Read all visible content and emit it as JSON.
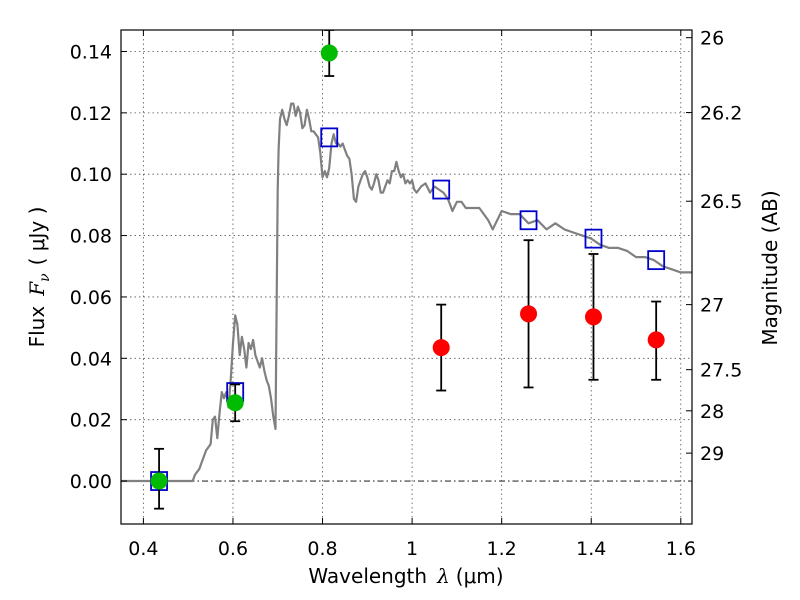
{
  "chart_data": {
    "type": "scatter",
    "title": "",
    "xlabel": {
      "text": "Wavelength",
      "symbol": "λ",
      "unit": "(μm)"
    },
    "ylabel": {
      "text": "Flux",
      "symbol": "F",
      "subscript": "ν",
      "unit": "( μJy )"
    },
    "y2label": "Magnitude (AB)",
    "xlim": [
      0.35,
      1.625
    ],
    "ylim": [
      -0.014,
      0.147
    ],
    "grid": true,
    "xticks": [
      0.4,
      0.6,
      0.8,
      1.0,
      1.2,
      1.4,
      1.6
    ],
    "xtick_labels": [
      "0.4",
      "0.6",
      "0.8",
      "1",
      "1.2",
      "1.4",
      "1.6"
    ],
    "yticks": [
      0.0,
      0.02,
      0.04,
      0.06,
      0.08,
      0.1,
      0.12,
      0.14
    ],
    "ytick_labels": [
      "0.00",
      "0.02",
      "0.04",
      "0.06",
      "0.08",
      "0.10",
      "0.12",
      "0.14"
    ],
    "y2ticks": [
      {
        "label": "26",
        "flux": 0.1445
      },
      {
        "label": "26.2",
        "flux": 0.1201
      },
      {
        "label": "26.5",
        "flux": 0.0912
      },
      {
        "label": "27",
        "flux": 0.0575
      },
      {
        "label": "27.5",
        "flux": 0.0363
      },
      {
        "label": "28",
        "flux": 0.0229
      },
      {
        "label": "29",
        "flux": 0.0091
      }
    ],
    "series": [
      {
        "color": "#808080",
        "kind": "line",
        "x": [
          0.35,
          0.51,
          0.515,
          0.525,
          0.53,
          0.54,
          0.55,
          0.555,
          0.56,
          0.565,
          0.57,
          0.575,
          0.58,
          0.585,
          0.59,
          0.595,
          0.6,
          0.605,
          0.61,
          0.615,
          0.62,
          0.625,
          0.63,
          0.635,
          0.64,
          0.645,
          0.65,
          0.655,
          0.66,
          0.665,
          0.67,
          0.675,
          0.68,
          0.685,
          0.69,
          0.695,
          0.7,
          0.702,
          0.705,
          0.71,
          0.715,
          0.72,
          0.725,
          0.73,
          0.735,
          0.74,
          0.745,
          0.75,
          0.755,
          0.76,
          0.765,
          0.77,
          0.775,
          0.78,
          0.785,
          0.79,
          0.795,
          0.8,
          0.805,
          0.81,
          0.815,
          0.82,
          0.825,
          0.83,
          0.835,
          0.84,
          0.845,
          0.85,
          0.855,
          0.86,
          0.865,
          0.87,
          0.875,
          0.88,
          0.885,
          0.89,
          0.895,
          0.9,
          0.905,
          0.91,
          0.915,
          0.92,
          0.925,
          0.93,
          0.935,
          0.94,
          0.945,
          0.95,
          0.955,
          0.96,
          0.965,
          0.97,
          0.975,
          0.98,
          0.985,
          0.99,
          0.995,
          1.0,
          1.005,
          1.01,
          1.02,
          1.03,
          1.04,
          1.05,
          1.06,
          1.07,
          1.08,
          1.09,
          1.1,
          1.11,
          1.12,
          1.13,
          1.14,
          1.15,
          1.16,
          1.17,
          1.18,
          1.19,
          1.2,
          1.22,
          1.24,
          1.26,
          1.28,
          1.3,
          1.32,
          1.34,
          1.36,
          1.38,
          1.4,
          1.42,
          1.44,
          1.46,
          1.48,
          1.5,
          1.52,
          1.54,
          1.56,
          1.58,
          1.6,
          1.625
        ],
        "y": [
          0.0,
          0.0,
          0.002,
          0.004,
          0.006,
          0.01,
          0.012,
          0.02,
          0.021,
          0.014,
          0.022,
          0.029,
          0.027,
          0.029,
          0.024,
          0.033,
          0.045,
          0.054,
          0.051,
          0.041,
          0.047,
          0.043,
          0.037,
          0.045,
          0.043,
          0.046,
          0.041,
          0.039,
          0.037,
          0.04,
          0.036,
          0.033,
          0.031,
          0.027,
          0.021,
          0.017,
          0.095,
          0.108,
          0.118,
          0.121,
          0.118,
          0.116,
          0.119,
          0.123,
          0.123,
          0.119,
          0.122,
          0.12,
          0.115,
          0.116,
          0.121,
          0.118,
          0.114,
          0.114,
          0.113,
          0.112,
          0.107,
          0.099,
          0.101,
          0.099,
          0.102,
          0.11,
          0.113,
          0.11,
          0.11,
          0.109,
          0.11,
          0.108,
          0.106,
          0.105,
          0.1,
          0.092,
          0.091,
          0.096,
          0.098,
          0.1,
          0.101,
          0.099,
          0.096,
          0.095,
          0.097,
          0.1,
          0.098,
          0.094,
          0.094,
          0.096,
          0.098,
          0.097,
          0.101,
          0.101,
          0.104,
          0.101,
          0.099,
          0.1,
          0.097,
          0.098,
          0.097,
          0.098,
          0.095,
          0.094,
          0.096,
          0.097,
          0.094,
          0.096,
          0.095,
          0.094,
          0.092,
          0.088,
          0.091,
          0.091,
          0.089,
          0.089,
          0.089,
          0.089,
          0.087,
          0.085,
          0.082,
          0.085,
          0.088,
          0.087,
          0.087,
          0.084,
          0.085,
          0.082,
          0.084,
          0.082,
          0.081,
          0.08,
          0.079,
          0.077,
          0.076,
          0.076,
          0.075,
          0.073,
          0.073,
          0.072,
          0.07,
          0.069,
          0.068,
          0.068
        ]
      },
      {
        "color": "#0000cc",
        "kind": "open-square",
        "x": [
          0.435,
          0.605,
          0.815,
          1.065,
          1.26,
          1.405,
          1.545
        ],
        "y": [
          0.0,
          0.029,
          0.112,
          0.095,
          0.085,
          0.079,
          0.072
        ]
      },
      {
        "color": "#00bb00",
        "kind": "filled-circle",
        "x": [
          0.435,
          0.605,
          0.815
        ],
        "y": [
          0.0,
          0.0255,
          0.1395
        ],
        "yerr_low": [
          -0.009,
          0.0195,
          0.132
        ],
        "yerr_high": [
          0.0105,
          0.0315,
          0.147
        ]
      },
      {
        "color": "#ff0000",
        "kind": "filled-circle",
        "x": [
          1.065,
          1.26,
          1.405,
          1.545
        ],
        "y": [
          0.0435,
          0.0545,
          0.0535,
          0.046
        ],
        "yerr_low": [
          0.0295,
          0.0305,
          0.033,
          0.033
        ],
        "yerr_high": [
          0.0575,
          0.0785,
          0.074,
          0.0585
        ]
      }
    ]
  }
}
